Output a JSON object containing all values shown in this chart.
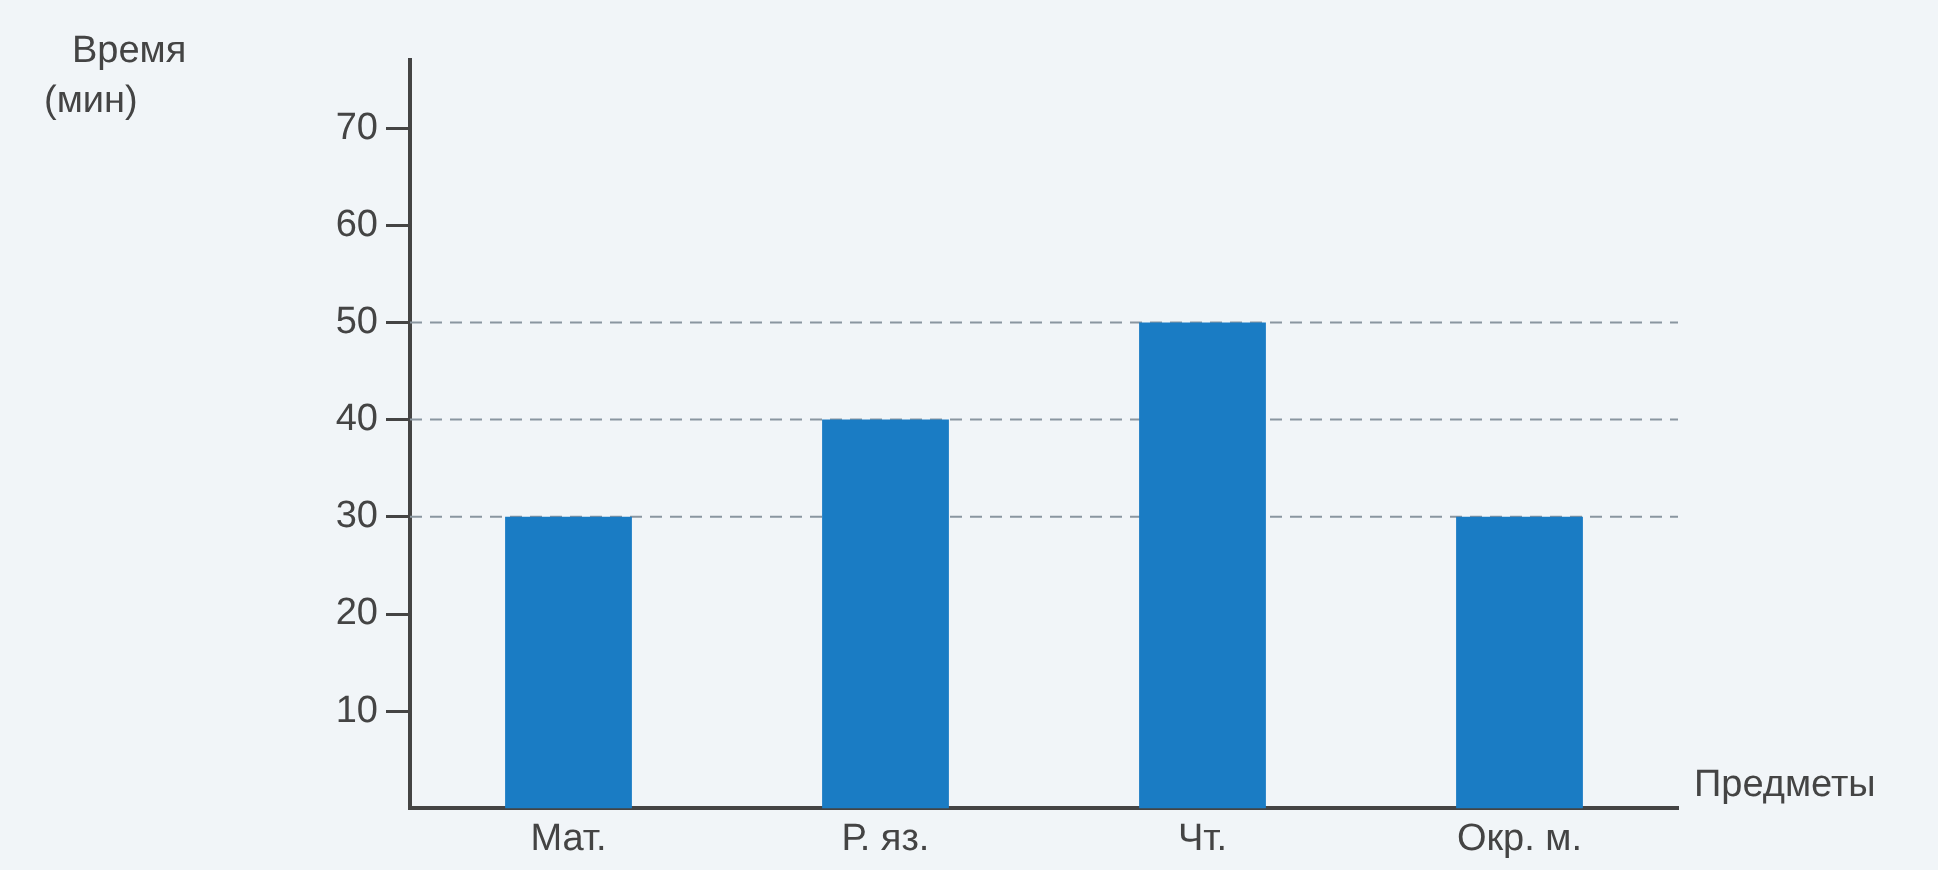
{
  "chart_data": {
    "type": "bar",
    "xlabel": "Предметы",
    "ylabel": "Время (мин)",
    "categories": [
      "Мат.",
      "Р. яз.",
      "Чт.",
      "Окр. м."
    ],
    "values": [
      30,
      40,
      50,
      30
    ],
    "color": "#1a7cc4",
    "ylim": [
      0,
      77
    ],
    "yticks": [
      10,
      20,
      30,
      40,
      50,
      60,
      70
    ],
    "grid": false,
    "ref_lines": [
      {
        "axis": "y",
        "value": 30,
        "line_style": "dashed"
      },
      {
        "axis": "y",
        "value": 40,
        "line_style": "dashed"
      },
      {
        "axis": "y",
        "value": 50,
        "line_style": "dashed"
      }
    ],
    "legend": false
  }
}
